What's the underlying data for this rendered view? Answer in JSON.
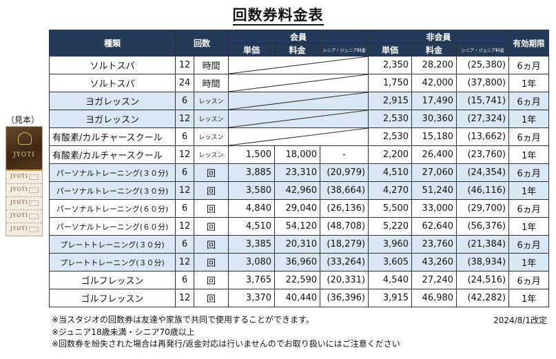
{
  "title": "回数券料金表",
  "sample": {
    "label": "（見本）",
    "logo": "JYOTI",
    "coupon_logo": "JYOTI"
  },
  "table": {
    "headers": {
      "kind": "種類",
      "count": "回数",
      "member": "会員",
      "non_member": "非会員",
      "unit_price": "単価",
      "fee": "料金",
      "senior_junior": "シニア・ジュニア料金",
      "validity": "有効期限"
    },
    "rows": [
      {
        "name": "ソルトスパ",
        "count": "12",
        "unit": "時間",
        "shaded": false,
        "member": null,
        "nm_unit": "2,350",
        "nm_fee": "28,200",
        "nm_sj": "(25,380)",
        "validity": "6ヵ月"
      },
      {
        "name": "ソルトスパ",
        "count": "24",
        "unit": "時間",
        "shaded": false,
        "member": null,
        "nm_unit": "1,750",
        "nm_fee": "42,000",
        "nm_sj": "(37,800)",
        "validity": "1年"
      },
      {
        "name": "ヨガレッスン",
        "count": "6",
        "unit": "レッスン",
        "shaded": true,
        "member": null,
        "nm_unit": "2,915",
        "nm_fee": "17,490",
        "nm_sj": "(15,741)",
        "validity": "6ヵ月"
      },
      {
        "name": "ヨガレッスン",
        "count": "12",
        "unit": "レッスン",
        "shaded": true,
        "member": null,
        "nm_unit": "2,530",
        "nm_fee": "30,360",
        "nm_sj": "(27,324)",
        "validity": "1年"
      },
      {
        "name": "有酸素/カルチャースクール",
        "count": "6",
        "unit": "レッスン",
        "shaded": false,
        "member": null,
        "nm_unit": "2,530",
        "nm_fee": "15,180",
        "nm_sj": "(13,662)",
        "validity": "6ヵ月"
      },
      {
        "name": "有酸素/カルチャースクール",
        "count": "12",
        "unit": "レッスン",
        "shaded": false,
        "member": {
          "unit": "1,500",
          "fee": "18,000",
          "sj": "-"
        },
        "nm_unit": "2,200",
        "nm_fee": "26,400",
        "nm_sj": "(23,760)",
        "validity": "1年"
      },
      {
        "name": "パーソナルトレーニング(３０分)",
        "count": "6",
        "unit": "回",
        "shaded": true,
        "member": {
          "unit": "3,885",
          "fee": "23,310",
          "sj": "(20,979)"
        },
        "nm_unit": "4,510",
        "nm_fee": "27,060",
        "nm_sj": "(24,354)",
        "validity": "6ヵ月"
      },
      {
        "name": "パーソナルトレーニング(３０分)",
        "count": "12",
        "unit": "回",
        "shaded": true,
        "member": {
          "unit": "3,580",
          "fee": "42,960",
          "sj": "(38,664)"
        },
        "nm_unit": "4,270",
        "nm_fee": "51,240",
        "nm_sj": "(46,116)",
        "validity": "1年"
      },
      {
        "name": "パーソナルトレーニング(６０分)",
        "count": "6",
        "unit": "回",
        "shaded": false,
        "member": {
          "unit": "4,840",
          "fee": "29,040",
          "sj": "(26,136)"
        },
        "nm_unit": "5,500",
        "nm_fee": "33,000",
        "nm_sj": "(29,700)",
        "validity": "6ヵ月"
      },
      {
        "name": "パーソナルトレーニング(６０分)",
        "count": "12",
        "unit": "回",
        "shaded": false,
        "member": {
          "unit": "4,510",
          "fee": "54,120",
          "sj": "(48,708)"
        },
        "nm_unit": "5,220",
        "nm_fee": "62,640",
        "nm_sj": "(56,376)",
        "validity": "1年"
      },
      {
        "name": "プレートトレーニング(３０分)",
        "count": "6",
        "unit": "回",
        "shaded": true,
        "member": {
          "unit": "3,385",
          "fee": "20,310",
          "sj": "(18,279)"
        },
        "nm_unit": "3,960",
        "nm_fee": "23,760",
        "nm_sj": "(21,384)",
        "validity": "6ヵ月"
      },
      {
        "name": "プレートトレーニング(３０分)",
        "count": "12",
        "unit": "回",
        "shaded": true,
        "member": {
          "unit": "3,080",
          "fee": "36,960",
          "sj": "(33,264)"
        },
        "nm_unit": "3,605",
        "nm_fee": "43,260",
        "nm_sj": "(38,934)",
        "validity": "1年"
      },
      {
        "name": "ゴルフレッスン",
        "count": "6",
        "unit": "回",
        "shaded": false,
        "member": {
          "unit": "3,765",
          "fee": "22,590",
          "sj": "(20,331)"
        },
        "nm_unit": "4,540",
        "nm_fee": "27,240",
        "nm_sj": "(24,516)",
        "validity": "6ヵ月"
      },
      {
        "name": "ゴルフレッスン",
        "count": "12",
        "unit": "回",
        "shaded": false,
        "member": {
          "unit": "3,370",
          "fee": "40,440",
          "sj": "(36,396)"
        },
        "nm_unit": "3,915",
        "nm_fee": "46,980",
        "nm_sj": "(42,282)",
        "validity": "1年"
      }
    ]
  },
  "notes": [
    "※当スタジオの回数券は友達や家族で共同で使用することができます。",
    "※ジュニア18歳未満・シニア70歳以上",
    "※回数券を紛失された場合は再発行/返金対応は行いませんのでお取り扱いにはご注意ください"
  ],
  "revised": "2024/8/1改定"
}
